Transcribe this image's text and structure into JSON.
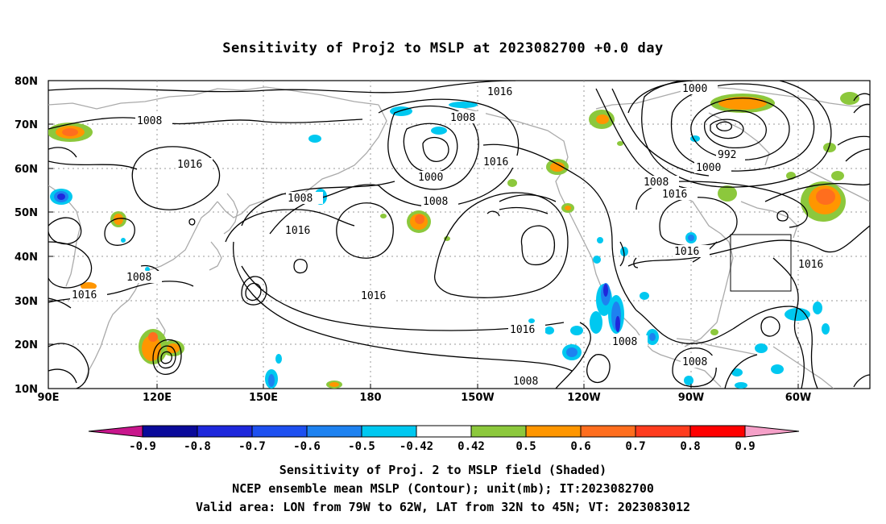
{
  "title": "Sensitivity of Proj2 to MSLP at 2023082700 +0.0 day",
  "lat_labels": [
    "80N",
    "70N",
    "60N",
    "50N",
    "40N",
    "30N",
    "20N",
    "10N"
  ],
  "lon_labels": [
    "90E",
    "120E",
    "150E",
    "180",
    "150W",
    "120W",
    "90W",
    "60W"
  ],
  "contour_labels": [
    {
      "text": "1016"
    },
    {
      "text": "1008"
    },
    {
      "text": "1000"
    },
    {
      "text": "992"
    },
    {
      "text": "1000"
    },
    {
      "text": "1008"
    },
    {
      "text": "1016"
    },
    {
      "text": "1016"
    },
    {
      "text": "1008"
    },
    {
      "text": "1016"
    },
    {
      "text": "1000"
    },
    {
      "text": "1008"
    },
    {
      "text": "1008"
    },
    {
      "text": "1016"
    },
    {
      "text": "1016"
    },
    {
      "text": "1008"
    },
    {
      "text": "1016"
    },
    {
      "text": "1016"
    },
    {
      "text": "1016"
    },
    {
      "text": "1016"
    },
    {
      "text": "1008"
    },
    {
      "text": "1008"
    },
    {
      "text": "1008"
    }
  ],
  "colorbar": {
    "labels": [
      "-0.9",
      "-0.8",
      "-0.7",
      "-0.6",
      "-0.5",
      "-0.42",
      "0.42",
      "0.5",
      "0.6",
      "0.7",
      "0.8",
      "0.9"
    ],
    "colors": {
      "low_ext": "#c8168c",
      "neg1": "#0a0a9a",
      "neg2": "#1e28dc",
      "neg3": "#1e50f0",
      "neg4": "#1e82f0",
      "neg5": "#00c8f0",
      "white": "#ffffff",
      "pos1": "#8cc83c",
      "pos2": "#ff9600",
      "pos3": "#ff6e1e",
      "pos4": "#ff3c1e",
      "pos5": "#ff0000",
      "high_ext": "#f5a0c8"
    }
  },
  "footer": {
    "line1": "Sensitivity of Proj. 2 to MSLP field (Shaded)",
    "line2": "NCEP ensemble mean MSLP (Contour); unit(mb); IT:2023082700",
    "line3": "Valid area: LON from 79W to 62W, LAT from 32N to 45N; VT: 2023083012"
  }
}
